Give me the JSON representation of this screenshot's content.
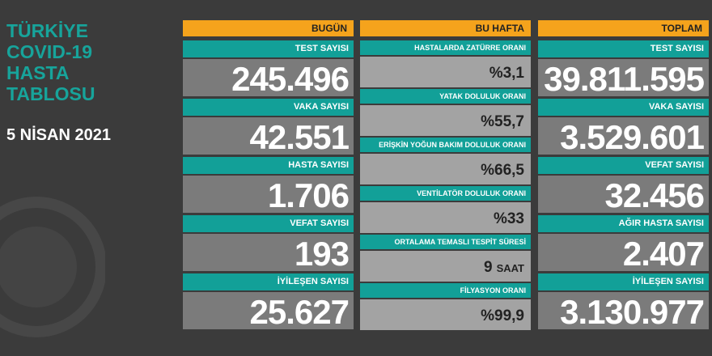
{
  "title": {
    "lines": [
      "TÜRKİYE",
      "COVID-19",
      "HASTA",
      "TABLOSU"
    ],
    "date": "5 NİSAN 2021"
  },
  "columns": [
    {
      "header": "BUGÜN",
      "items": [
        {
          "label": "TEST SAYISI",
          "value": "245.496"
        },
        {
          "label": "VAKA SAYISI",
          "value": "42.551"
        },
        {
          "label": "HASTA SAYISI",
          "value": "1.706"
        },
        {
          "label": "VEFAT SAYISI",
          "value": "193"
        },
        {
          "label": "İYİLEŞEN SAYISI",
          "value": "25.627"
        }
      ]
    },
    {
      "header": "BU HAFTA",
      "items": [
        {
          "label": "HASTALARDA ZATÜRRE ORANI",
          "value": "%3,1"
        },
        {
          "label": "YATAK DOLULUK ORANI",
          "value": "%55,7"
        },
        {
          "label": "ERİŞKİN YOĞUN BAKIM DOLULUK ORANI",
          "value": "%66,5"
        },
        {
          "label": "VENTİLATÖR DOLULUK ORANI",
          "value": "%33"
        },
        {
          "label": "ORTALAMA TEMASLI TESPİT SÜRESİ",
          "value": "9",
          "unit": "SAAT"
        },
        {
          "label": "FİLYASYON ORANI",
          "value": "%99,9"
        }
      ]
    },
    {
      "header": "TOPLAM",
      "items": [
        {
          "label": "TEST SAYISI",
          "value": "39.811.595"
        },
        {
          "label": "VAKA SAYISI",
          "value": "3.529.601"
        },
        {
          "label": "VEFAT SAYISI",
          "value": "32.456"
        },
        {
          "label": "AĞIR HASTA SAYISI",
          "value": "2.407"
        },
        {
          "label": "İYİLEŞEN SAYISI",
          "value": "3.130.977"
        }
      ]
    }
  ]
}
